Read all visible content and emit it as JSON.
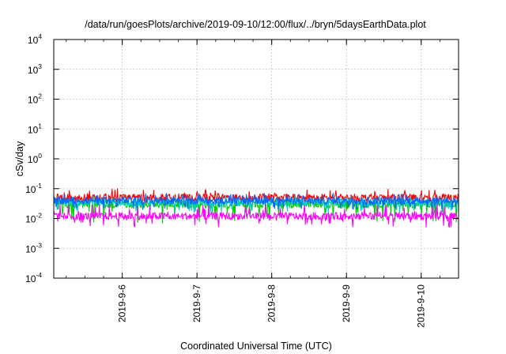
{
  "chart_data": {
    "type": "line",
    "title": "/data/run/goesPlots/archive/2019-09-10/12:00/flux/../bryn/5daysEarthData.plot",
    "xlabel": "Coordinated Universal Time (UTC)",
    "ylabel": "cSv/day",
    "yscale": "log",
    "ylim": [
      0.0001,
      10000
    ],
    "xlim": [
      "2019-09-05T02:00",
      "2019-09-10T12:00"
    ],
    "grid": true,
    "x_ticks": [
      "2019-9-6",
      "2019-9-7",
      "2019-9-8",
      "2019-9-9",
      "2019-9-10"
    ],
    "y_ticks": [
      {
        "base": "10",
        "exp": "-4"
      },
      {
        "base": "10",
        "exp": "-3"
      },
      {
        "base": "10",
        "exp": "-2"
      },
      {
        "base": "10",
        "exp": "-1"
      },
      {
        "base": "10",
        "exp": "0"
      },
      {
        "base": "10",
        "exp": "1"
      },
      {
        "base": "10",
        "exp": "2"
      },
      {
        "base": "10",
        "exp": "3"
      },
      {
        "base": "10",
        "exp": "4"
      }
    ],
    "series": [
      {
        "color": "#ff0000",
        "typical": 0.05,
        "low": 0.03,
        "high": 0.1
      },
      {
        "color": "#00cc00",
        "typical": 0.03,
        "low": 0.007,
        "high": 0.05
      },
      {
        "color": "#00cccc",
        "typical": 0.035,
        "low": 0.015,
        "high": 0.06
      },
      {
        "color": "#0066ff",
        "typical": 0.04,
        "low": 0.02,
        "high": 0.07
      },
      {
        "color": "#ff00ff",
        "typical": 0.012,
        "low": 0.005,
        "high": 0.03
      }
    ]
  }
}
